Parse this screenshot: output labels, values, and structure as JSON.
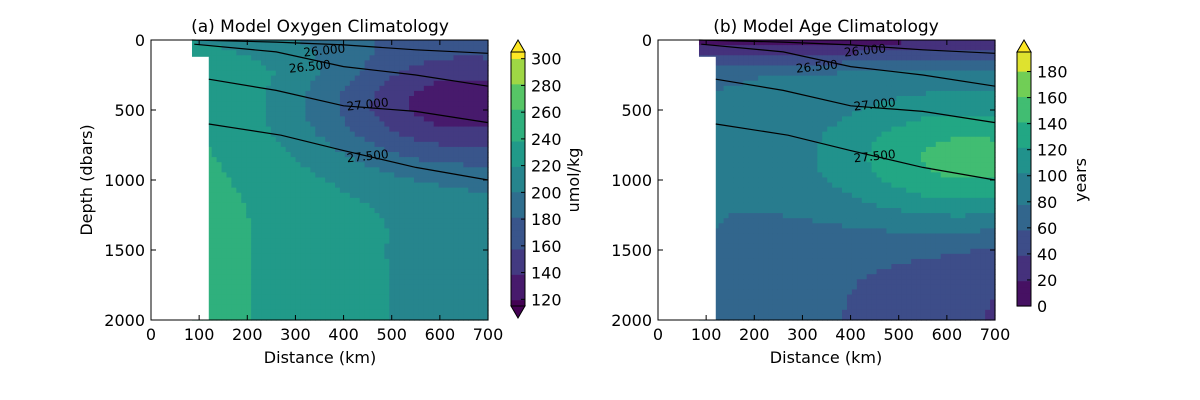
{
  "chart_data": [
    {
      "type": "heatmap",
      "title": "(a) Model Oxygen Climatology",
      "xlabel": "Distance (km)",
      "ylabel": "Depth (dbars)",
      "xlim": [
        0,
        700
      ],
      "ylim": [
        2000,
        0
      ],
      "xticks": [
        "0",
        "100",
        "200",
        "300",
        "400",
        "500",
        "600",
        "700"
      ],
      "yticks": [
        "0",
        "500",
        "1000",
        "1500",
        "2000"
      ],
      "land_mask": {
        "shelf_edge_km": 120,
        "shelf_depth_dbars": 120,
        "coast_km": 85
      },
      "field": {
        "surface": {
          "near": 225,
          "far": 195
        },
        "core": {
          "x_km": 650,
          "depth_dbars": 450,
          "value": 128
        },
        "deep_max": 246
      },
      "colorbar": {
        "label": "umol/kg",
        "min": 115,
        "max": 305,
        "ticks": [
          "120",
          "140",
          "160",
          "180",
          "200",
          "220",
          "240",
          "260",
          "280",
          "300"
        ],
        "extend": "both"
      },
      "contours": [
        {
          "label": "26.000",
          "label_at": [
            360,
            75
          ],
          "points": [
            [
              85,
              0
            ],
            [
              260,
              15
            ],
            [
              400,
              35
            ],
            [
              550,
              70
            ],
            [
              700,
              95
            ]
          ]
        },
        {
          "label": "26.500",
          "label_at": [
            330,
            190
          ],
          "points": [
            [
              90,
              30
            ],
            [
              260,
              85
            ],
            [
              400,
              190
            ],
            [
              550,
              250
            ],
            [
              700,
              330
            ]
          ]
        },
        {
          "label": "27.000",
          "label_at": [
            450,
            460
          ],
          "points": [
            [
              120,
              280
            ],
            [
              260,
              360
            ],
            [
              400,
              470
            ],
            [
              550,
              510
            ],
            [
              700,
              590
            ]
          ]
        },
        {
          "label": "27.500",
          "label_at": [
            450,
            830
          ],
          "points": [
            [
              120,
              600
            ],
            [
              270,
              680
            ],
            [
              400,
              790
            ],
            [
              550,
              910
            ],
            [
              700,
              1000
            ]
          ]
        }
      ]
    },
    {
      "type": "heatmap",
      "title": "(b) Model Age Climatology",
      "xlabel": "Distance (km)",
      "ylabel": "",
      "xlim": [
        0,
        700
      ],
      "ylim": [
        2000,
        0
      ],
      "xticks": [
        "0",
        "100",
        "200",
        "300",
        "400",
        "500",
        "600",
        "700"
      ],
      "yticks": [
        "0",
        "500",
        "1000",
        "1500",
        "2000"
      ],
      "land_mask": {
        "shelf_edge_km": 120,
        "shelf_depth_dbars": 120,
        "coast_km": 85
      },
      "field": {
        "surface": {
          "near": 8,
          "far": 8
        },
        "core": {
          "x_km": 650,
          "depth_dbars": 850,
          "value": 148
        },
        "deep_max": 78
      },
      "colorbar": {
        "label": "years",
        "min": 0,
        "max": 195,
        "ticks": [
          "0",
          "20",
          "40",
          "60",
          "80",
          "100",
          "120",
          "140",
          "160",
          "180"
        ],
        "extend": "max"
      },
      "contours": [
        {
          "label": "26.000",
          "label_at": [
            430,
            75
          ],
          "points": [
            [
              85,
              0
            ],
            [
              260,
              15
            ],
            [
              400,
              35
            ],
            [
              550,
              70
            ],
            [
              700,
              95
            ]
          ]
        },
        {
          "label": "26.500",
          "label_at": [
            330,
            190
          ],
          "points": [
            [
              90,
              30
            ],
            [
              260,
              85
            ],
            [
              400,
              190
            ],
            [
              550,
              250
            ],
            [
              700,
              330
            ]
          ]
        },
        {
          "label": "27.000",
          "label_at": [
            450,
            460
          ],
          "points": [
            [
              120,
              280
            ],
            [
              260,
              360
            ],
            [
              400,
              470
            ],
            [
              550,
              510
            ],
            [
              700,
              590
            ]
          ]
        },
        {
          "label": "27.500",
          "label_at": [
            450,
            830
          ],
          "points": [
            [
              120,
              600
            ],
            [
              270,
              680
            ],
            [
              400,
              790
            ],
            [
              550,
              910
            ],
            [
              700,
              1000
            ]
          ]
        }
      ]
    }
  ]
}
